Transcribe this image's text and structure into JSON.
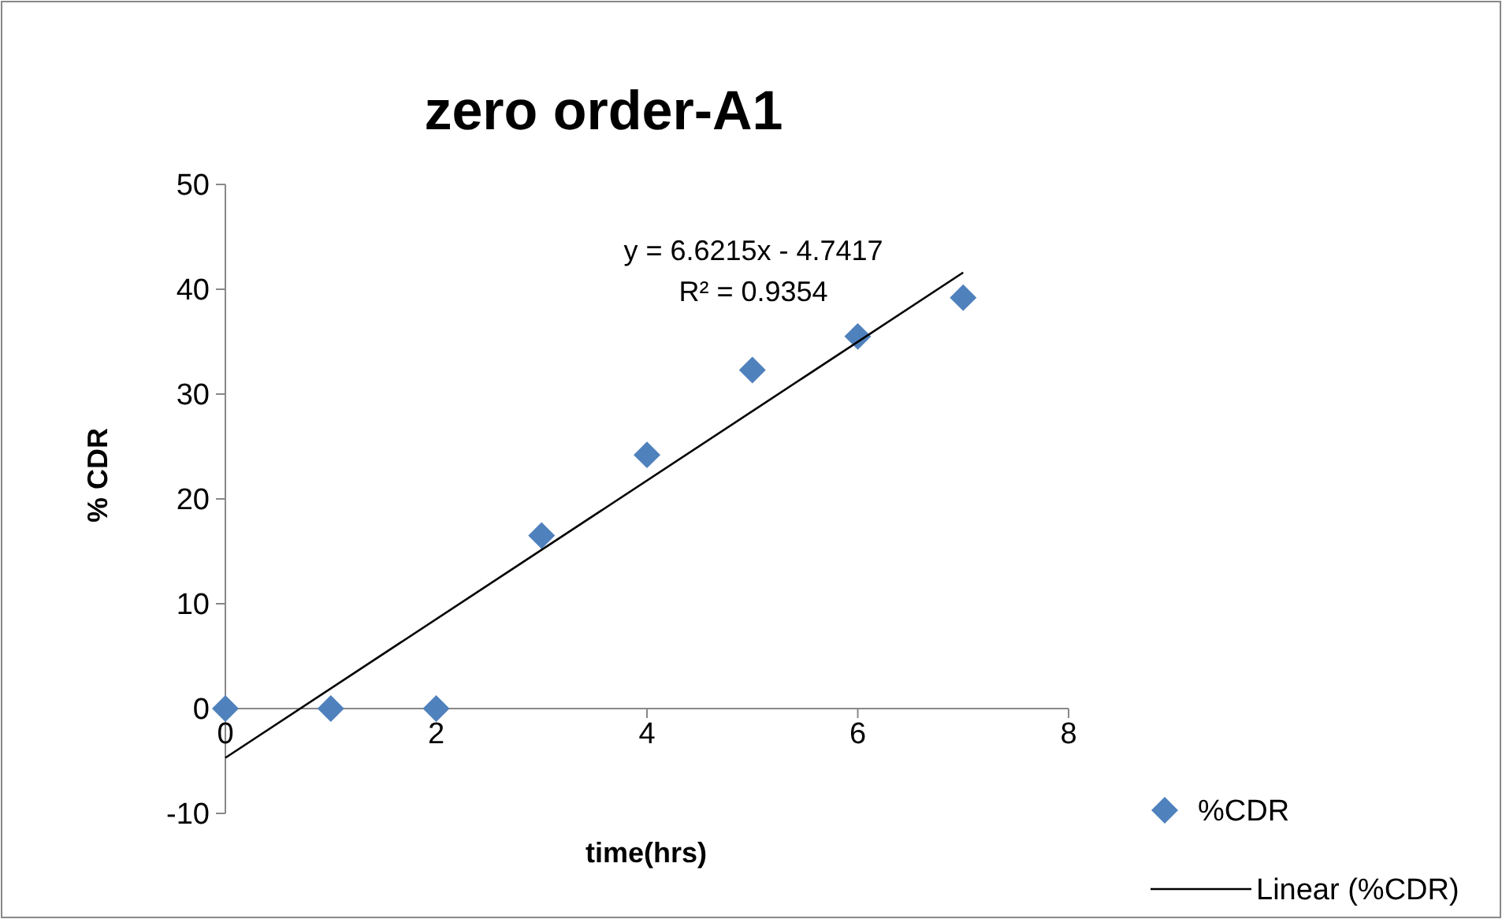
{
  "chart_data": {
    "type": "scatter",
    "title": "zero order-A1",
    "xlabel": "time(hrs)",
    "ylabel": "% CDR",
    "x": [
      0,
      1,
      2,
      3,
      4,
      5,
      6,
      7
    ],
    "series": [
      {
        "name": "%CDR",
        "color": "#4f81bd",
        "values": [
          0,
          0,
          0,
          16.5,
          24.2,
          32.3,
          35.5,
          39.2
        ],
        "marker": "diamond"
      },
      {
        "name": "Linear (%CDR)",
        "type": "line",
        "color": "#000000",
        "x": [
          0,
          7
        ],
        "values": [
          -4.7,
          41.6
        ],
        "marker": "none",
        "line_style": "solid"
      }
    ],
    "xlim": [
      0,
      8
    ],
    "xticks": [
      0,
      2,
      4,
      6,
      8
    ],
    "ylim": [
      -10,
      50
    ],
    "yticks": [
      -10,
      0,
      10,
      20,
      30,
      40,
      50
    ],
    "annotations": [
      "y = 6.6215x - 4.7417",
      "R² = 0.9354"
    ],
    "grid": false,
    "legend": "bottom right"
  }
}
